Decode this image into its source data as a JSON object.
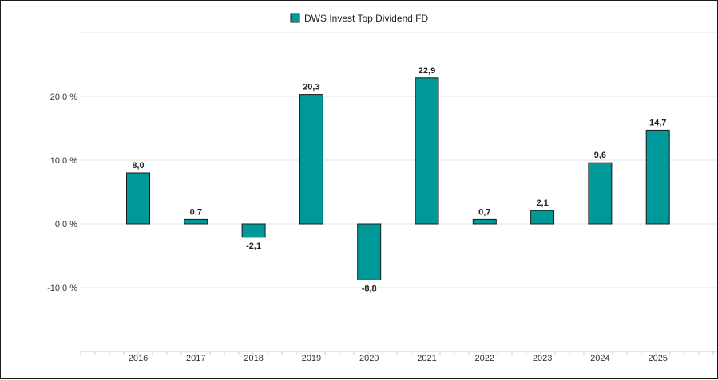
{
  "chart_data": {
    "type": "bar",
    "categories": [
      "2016",
      "2017",
      "2018",
      "2019",
      "2020",
      "2021",
      "2022",
      "2023",
      "2024",
      "2025"
    ],
    "series": [
      {
        "name": "DWS Invest Top Dividend FD",
        "values": [
          8.0,
          0.7,
          -2.1,
          20.3,
          -8.8,
          22.9,
          0.7,
          2.1,
          9.6,
          14.7
        ],
        "labels": [
          "8,0",
          "0,7",
          "-2,1",
          "20,3",
          "-8,8",
          "22,9",
          "0,7",
          "2,1",
          "9,6",
          "14,7"
        ]
      }
    ],
    "y_ticks": [
      20,
      10,
      0,
      -10
    ],
    "y_tick_labels": [
      "20,0 %",
      "10,0 %",
      "0,0 %",
      "-10,0 %"
    ],
    "ylim": [
      -20,
      30
    ],
    "grid": true,
    "legend": "top-center",
    "colors": {
      "bar": "#009999",
      "bar_border": "#1a1a1a",
      "grid": "#e3e3e3"
    }
  }
}
